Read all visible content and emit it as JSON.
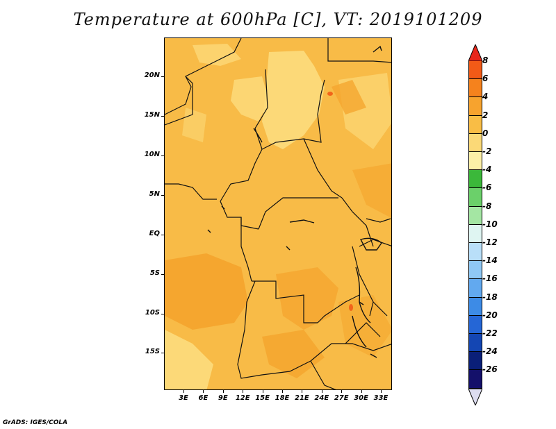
{
  "title": "Temperature at 600hPa [C], VT: 2019101209",
  "credit": "GrADS: IGES/COLA",
  "map": {
    "lat_range": [
      -20,
      25
    ],
    "lon_range": [
      0,
      35
    ],
    "y_ticks": [
      "20N",
      "15N",
      "10N",
      "5N",
      "EQ",
      "5S",
      "10S",
      "15S"
    ],
    "x_ticks": [
      "3E",
      "6E",
      "9E",
      "12E",
      "15E",
      "18E",
      "21E",
      "24E",
      "27E",
      "30E",
      "33E"
    ]
  },
  "colorbar": {
    "labels": [
      "8",
      "6",
      "4",
      "2",
      "0",
      "-2",
      "-4",
      "-6",
      "-8",
      "-10",
      "-12",
      "-14",
      "-16",
      "-18",
      "-20",
      "-22",
      "-24",
      "-26"
    ],
    "colors": [
      "#e8261a",
      "#f25a17",
      "#f5821d",
      "#f7a32e",
      "#f9bd45",
      "#fbd977",
      "#fdf0a7",
      "#3bb83a",
      "#6bd06a",
      "#a4e6a3",
      "#dff5f2",
      "#b9dff9",
      "#8fc8f5",
      "#62a9ef",
      "#3d8be6",
      "#2566d6",
      "#1446b3",
      "#0a1f78",
      "#14106a",
      "#dcdcf0"
    ]
  }
}
